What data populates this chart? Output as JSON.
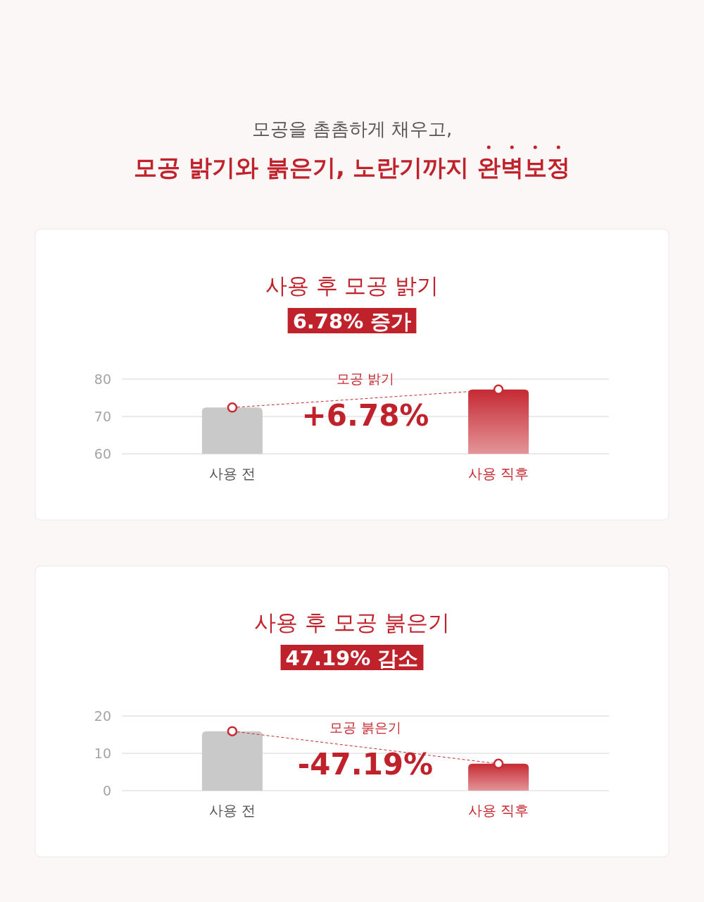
{
  "chart_data": [
    {
      "type": "other",
      "title": "모공 밝기와 붉은기, 노란기까지 완벽보정",
      "subtitle": "모공을 촘촘하게 채우고,"
    },
    {
      "type": "bar",
      "title": "사용 후 모공 밝기",
      "subtitle": "6.78% 증가",
      "categories": [
        "사용 전",
        "사용 직후"
      ],
      "series": [
        {
          "type": "bar",
          "colors": [
            "#c9c9c9",
            "#c62a33"
          ],
          "values": [
            72.4,
            77.2
          ]
        },
        {
          "type": "line",
          "name": "모공 밝기",
          "color": "#c62a33",
          "values": [
            72.4,
            77.2
          ],
          "marker": "circle",
          "line_style": "dashed"
        }
      ],
      "annotations": [
        "+6.78%"
      ],
      "ylim": [
        60,
        80
      ],
      "yticks": [
        60,
        70,
        80
      ],
      "grid": "y"
    },
    {
      "type": "bar",
      "title": "사용 후 모공 붉은기",
      "subtitle": "47.19% 감소",
      "categories": [
        "사용 전",
        "사용 직후"
      ],
      "series": [
        {
          "type": "bar",
          "colors": [
            "#c9c9c9",
            "#c62a33"
          ],
          "values": [
            15.9,
            7.2
          ]
        },
        {
          "type": "line",
          "name": "모공 붉은기",
          "color": "#c62a33",
          "values": [
            15.9,
            7.2
          ],
          "marker": "circle",
          "line_style": "dashed"
        }
      ],
      "annotations": [
        "-47.19%"
      ],
      "ylim": [
        0,
        20
      ],
      "yticks": [
        0,
        10,
        20
      ],
      "grid": "y"
    }
  ]
}
